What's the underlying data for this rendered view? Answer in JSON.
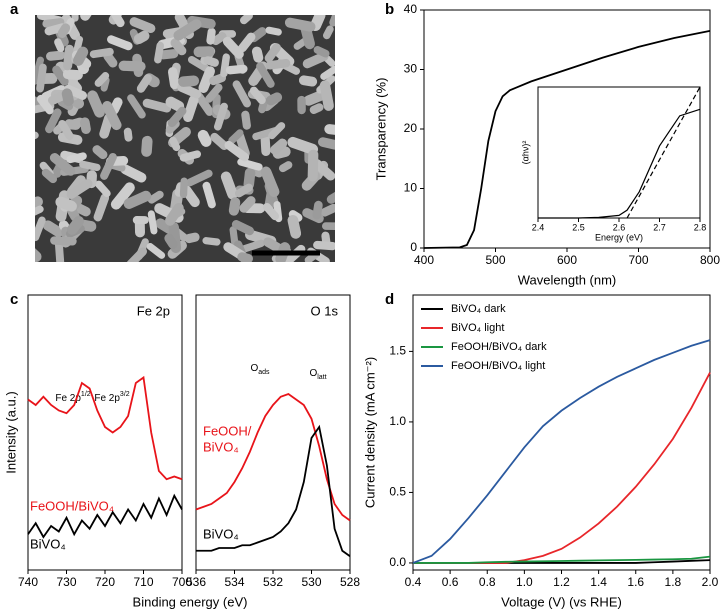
{
  "image_panel": {
    "label": "a"
  },
  "chart_data": [
    {
      "type": "line",
      "panel_label": "b",
      "xlabel": "Wavelength (nm)",
      "ylabel": "Transparency (%)",
      "xlim": [
        400,
        800
      ],
      "xticks": [
        400,
        500,
        600,
        700,
        800
      ],
      "ylim": [
        0,
        40
      ],
      "yticks": [
        0,
        10,
        20,
        30,
        40
      ],
      "x": [
        400,
        450,
        460,
        470,
        480,
        490,
        500,
        510,
        520,
        530,
        550,
        600,
        650,
        700,
        750,
        800
      ],
      "series": [
        {
          "color": "#000000",
          "values": [
            0,
            0.1,
            0.5,
            3,
            10,
            18,
            23,
            25.5,
            26.5,
            27,
            28,
            30,
            32,
            33.8,
            35.3,
            36.5
          ]
        }
      ]
    },
    {
      "type": "line",
      "xlabel": "Energy (eV)",
      "ylabel": "(αhν)²",
      "xlim": [
        2.4,
        2.8
      ],
      "xticks": [
        2.4,
        2.5,
        2.6,
        2.7,
        2.8
      ],
      "ylim": [
        0,
        1
      ],
      "x": [
        2.4,
        2.5,
        2.55,
        2.6,
        2.62,
        2.65,
        2.7,
        2.75,
        2.8
      ],
      "series": [
        {
          "color": "#000000",
          "values": [
            0,
            0,
            0.005,
            0.02,
            0.06,
            0.2,
            0.55,
            0.78,
            0.83
          ]
        },
        {
          "color": "#000000",
          "dash": true,
          "x": [
            2.62,
            2.8
          ],
          "values": [
            0,
            1
          ]
        }
      ]
    },
    {
      "type": "line",
      "panel_label": "c",
      "title": "Fe 2p",
      "xlabel": "Binding energy (eV)",
      "ylabel": "Intensity (a.u.)",
      "xlim": [
        740,
        700
      ],
      "xticks": [
        740,
        730,
        720,
        710,
        700
      ],
      "ylim": [
        0,
        1
      ],
      "x": [
        740,
        738,
        736,
        734,
        732,
        730,
        728,
        726,
        724,
        722,
        720,
        718,
        716,
        714,
        712,
        710,
        708,
        706,
        704,
        702,
        700
      ],
      "annotations": [
        {
          "text": "Fe 2p",
          "sup": "1/2"
        },
        {
          "text": "Fe 2p",
          "sup": "3/2"
        }
      ],
      "series": [
        {
          "name": "FeOOH/BiVO₄",
          "color": "#e8141a",
          "values": [
            0.62,
            0.6,
            0.63,
            0.6,
            0.58,
            0.57,
            0.6,
            0.68,
            0.66,
            0.58,
            0.52,
            0.5,
            0.52,
            0.56,
            0.68,
            0.7,
            0.5,
            0.36,
            0.33,
            0.34,
            0.33
          ]
        },
        {
          "name": "BiVO₄",
          "color": "#000000",
          "values": [
            0.13,
            0.17,
            0.12,
            0.16,
            0.14,
            0.19,
            0.13,
            0.18,
            0.15,
            0.2,
            0.16,
            0.21,
            0.17,
            0.22,
            0.18,
            0.24,
            0.19,
            0.26,
            0.2,
            0.27,
            0.22
          ]
        }
      ]
    },
    {
      "type": "line",
      "title": "O 1s",
      "xlim": [
        536,
        528
      ],
      "xticks": [
        536,
        534,
        532,
        530,
        528
      ],
      "ylim": [
        0,
        1
      ],
      "x": [
        536,
        535.6,
        535.2,
        534.8,
        534.4,
        534,
        533.6,
        533.2,
        532.8,
        532.4,
        532,
        531.6,
        531.2,
        530.8,
        530.4,
        530,
        529.6,
        529.2,
        528.8,
        528.4,
        528
      ],
      "annotations": [
        {
          "text": "O",
          "sub": "ads"
        },
        {
          "text": "O",
          "sub": "latt"
        }
      ],
      "series": [
        {
          "label_lines": [
            "FeOOH/",
            "BiVO₄"
          ],
          "color": "#e8141a",
          "values": [
            0.22,
            0.23,
            0.24,
            0.26,
            0.28,
            0.32,
            0.37,
            0.43,
            0.5,
            0.56,
            0.6,
            0.63,
            0.64,
            0.62,
            0.6,
            0.55,
            0.45,
            0.33,
            0.24,
            0.2,
            0.18
          ]
        },
        {
          "name": "BiVO₄",
          "color": "#000000",
          "values": [
            0.07,
            0.07,
            0.07,
            0.08,
            0.08,
            0.08,
            0.09,
            0.09,
            0.1,
            0.11,
            0.12,
            0.14,
            0.17,
            0.22,
            0.32,
            0.48,
            0.52,
            0.38,
            0.15,
            0.07,
            0.05
          ]
        }
      ]
    },
    {
      "type": "line",
      "panel_label": "d",
      "xlabel": "Voltage (V) (vs RHE)",
      "ylabel": "Current density (mA cm⁻²)",
      "xlim": [
        0.4,
        2.0
      ],
      "xticks": [
        0.4,
        0.6,
        0.8,
        {
          "value": 1,
          "label": "1.0"
        },
        1.2,
        1.4,
        1.6,
        1.8,
        {
          "value": 2,
          "label": "2.0"
        }
      ],
      "ylim": [
        -0.05,
        1.9
      ],
      "yticks": [
        {
          "value": 0,
          "label": "0.0"
        },
        0.5,
        {
          "value": 1,
          "label": "1.0"
        },
        1.5
      ],
      "legend": "upper left",
      "x": [
        0.4,
        0.5,
        0.6,
        0.7,
        0.8,
        0.9,
        1.0,
        1.1,
        1.2,
        1.3,
        1.4,
        1.5,
        1.6,
        1.7,
        1.8,
        1.9,
        2.0
      ],
      "series": [
        {
          "name": "BiVO₄ dark",
          "color": "#000000",
          "values": [
            0,
            0,
            0,
            0,
            0,
            0,
            0,
            0,
            0,
            0,
            0,
            0,
            0,
            0.005,
            0.01,
            0.015,
            0.02
          ]
        },
        {
          "name": "BiVO₄ light",
          "color": "#e8262a",
          "values": [
            0,
            0,
            0,
            0,
            0,
            0,
            0.02,
            0.05,
            0.1,
            0.18,
            0.28,
            0.4,
            0.54,
            0.7,
            0.88,
            1.1,
            1.35
          ]
        },
        {
          "name": "FeOOH/BiVO₄ dark",
          "color": "#1a9641",
          "values": [
            0,
            0,
            0,
            0,
            0.005,
            0.008,
            0.01,
            0.012,
            0.014,
            0.016,
            0.018,
            0.02,
            0.022,
            0.024,
            0.026,
            0.03,
            0.045
          ]
        },
        {
          "name": "FeOOH/BiVO₄ light",
          "color": "#2b5aa0",
          "values": [
            0,
            0.05,
            0.17,
            0.32,
            0.48,
            0.65,
            0.82,
            0.97,
            1.08,
            1.17,
            1.25,
            1.32,
            1.38,
            1.44,
            1.49,
            1.54,
            1.58
          ]
        }
      ]
    }
  ]
}
